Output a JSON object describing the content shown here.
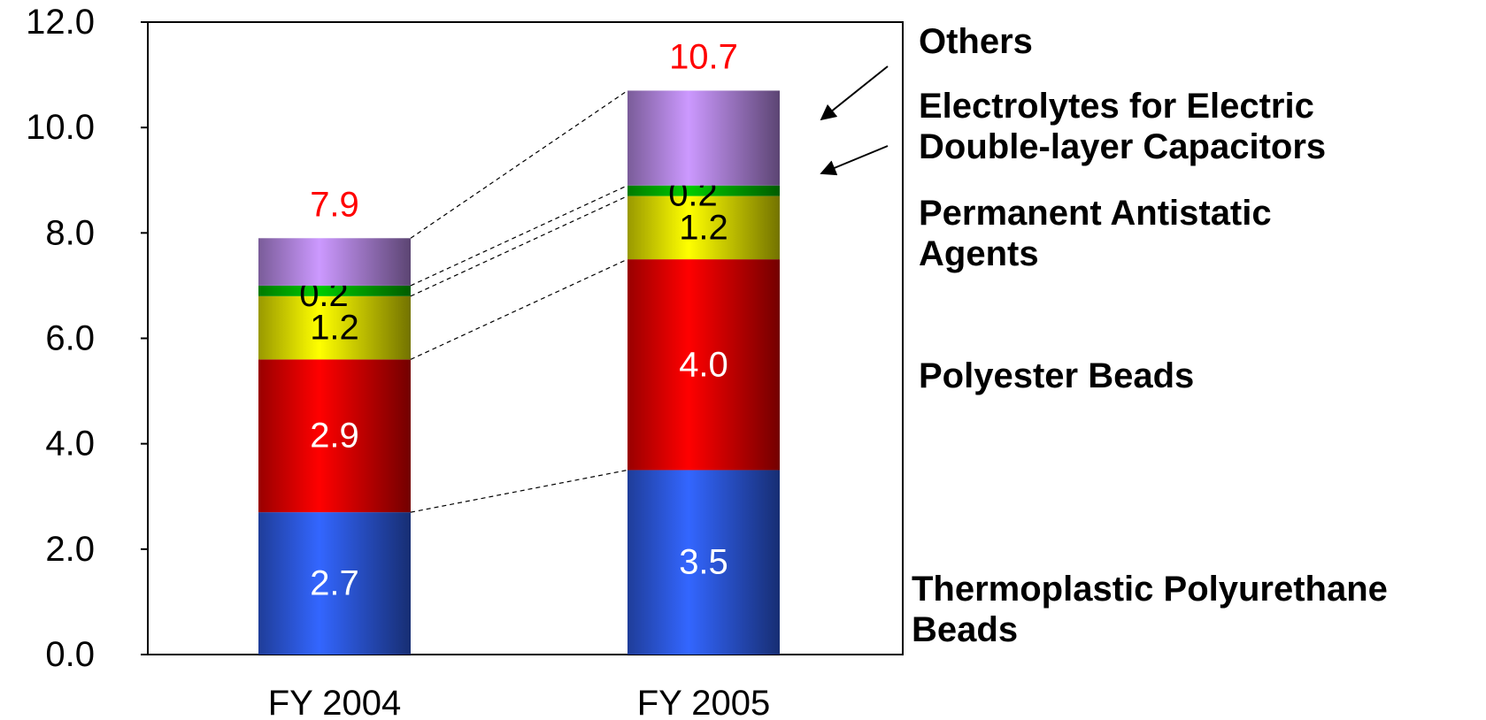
{
  "chart_data": {
    "type": "stacked_bar",
    "categories": [
      "FY 2004",
      "FY 2005"
    ],
    "series": [
      {
        "name": "Thermoplastic Polyurethane\nBeads",
        "color": "#3366ff",
        "values": [
          2.7,
          3.5
        ],
        "value_labels": [
          "2.7",
          "3.5"
        ]
      },
      {
        "name": "Polyester Beads",
        "color": "#ff0000",
        "values": [
          2.9,
          4.0
        ],
        "value_labels": [
          "2.9",
          "4.0"
        ]
      },
      {
        "name": "Permanent Antistatic\nAgents",
        "color": "#ffff00",
        "values": [
          1.2,
          1.2
        ],
        "value_labels": [
          "1.2",
          "1.2"
        ]
      },
      {
        "name": "Electrolytes for Electric\nDouble-layer Capacitors",
        "color": "#00cc00",
        "values": [
          0.2,
          0.2
        ],
        "value_labels": [
          "0.2",
          "0.2"
        ]
      },
      {
        "name": "Others",
        "color": "#cc99ff",
        "values": [
          0.9,
          1.8
        ]
      }
    ],
    "totals": [
      7.9,
      10.7
    ],
    "totals_color": "#ff0000",
    "ylim": [
      0,
      12
    ],
    "yticks": [
      {
        "value": 0,
        "label": "0.0"
      },
      {
        "value": 2,
        "label": "2.0"
      },
      {
        "value": 4,
        "label": "4.0"
      },
      {
        "value": 6,
        "label": "6.0"
      },
      {
        "value": 8,
        "label": "8.0"
      },
      {
        "value": 10,
        "label": "10.0"
      },
      {
        "value": 12,
        "label": "12.0"
      }
    ]
  }
}
